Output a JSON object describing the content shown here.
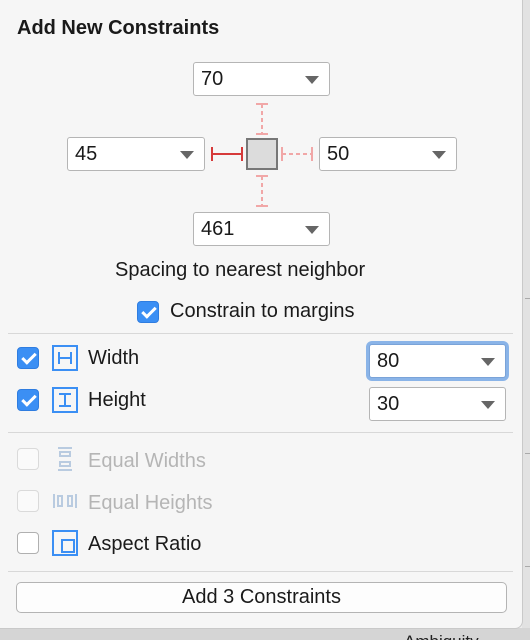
{
  "header": {
    "title": "Add New Constraints"
  },
  "spacing": {
    "top": {
      "value": "70"
    },
    "left": {
      "value": "45"
    },
    "right": {
      "value": "50"
    },
    "bottom": {
      "value": "461"
    },
    "caption": "Spacing to nearest neighbor",
    "constrain_margins": {
      "label": "Constrain to margins",
      "checked": true
    }
  },
  "size": {
    "width": {
      "label": "Width",
      "checked": true,
      "value": "80"
    },
    "height": {
      "label": "Height",
      "checked": true,
      "value": "30"
    }
  },
  "equal": {
    "widths": {
      "label": "Equal Widths",
      "checked": false,
      "enabled": false
    },
    "heights": {
      "label": "Equal Heights",
      "checked": false,
      "enabled": false
    }
  },
  "aspect": {
    "label": "Aspect Ratio",
    "checked": false
  },
  "footer": {
    "add_button_label": "Add 3 Constraints"
  },
  "backdrop": {
    "cut_text": "Ambiguity"
  },
  "colors": {
    "accent": "#3b8ff4",
    "strut_active": "#d63a3a",
    "strut_inactive": "#f1a7a7",
    "icon_blue": "#3b8ff4"
  }
}
